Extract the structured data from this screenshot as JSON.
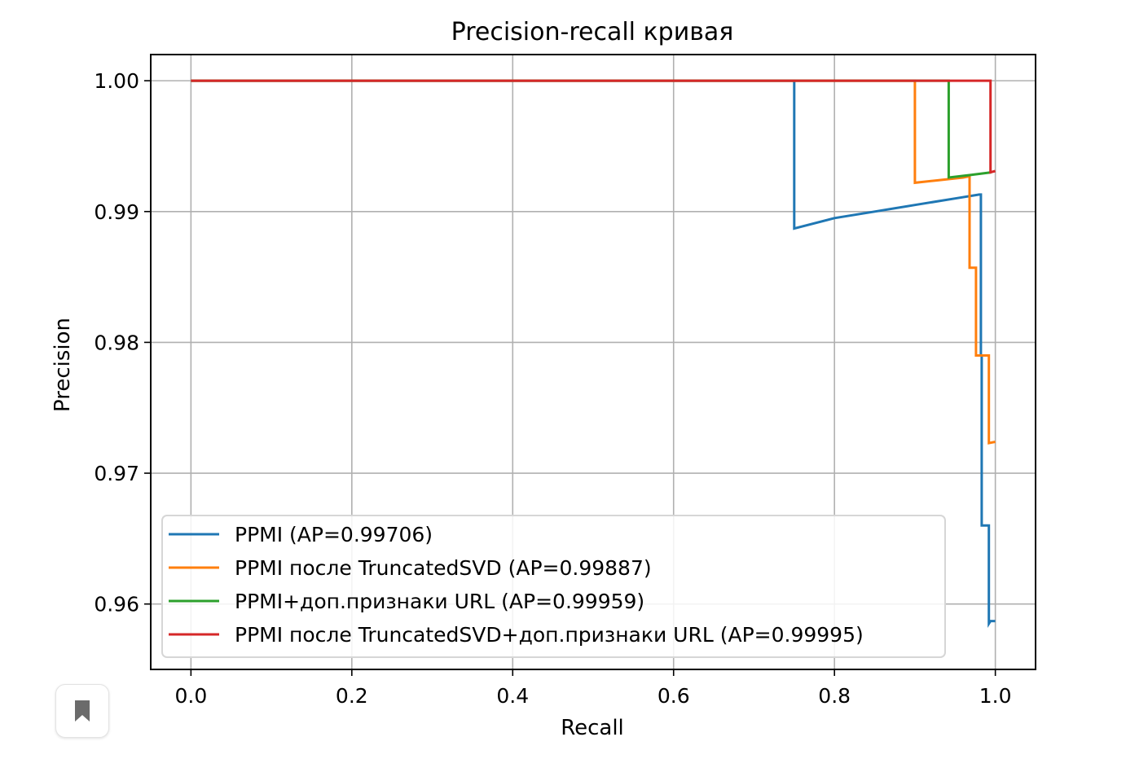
{
  "chart_data": {
    "type": "line",
    "title": "Precision-recall кривая",
    "xlabel": "Recall",
    "ylabel": "Precision",
    "xlim": [
      -0.05,
      1.05
    ],
    "ylim": [
      0.955,
      1.002
    ],
    "xticks": [
      0.0,
      0.2,
      0.4,
      0.6,
      0.8,
      1.0
    ],
    "xtick_labels": [
      "0.0",
      "0.2",
      "0.4",
      "0.6",
      "0.8",
      "1.0"
    ],
    "yticks": [
      0.96,
      0.97,
      0.98,
      0.99,
      1.0
    ],
    "ytick_labels": [
      "0.96",
      "0.97",
      "0.98",
      "0.99",
      "1.00"
    ],
    "grid": true,
    "legend_position": "lower-left",
    "series": [
      {
        "name": "PPMI (AP=0.99706)",
        "color": "#1f77b4",
        "points": [
          [
            0.0,
            1.0
          ],
          [
            0.75,
            1.0
          ],
          [
            0.75,
            0.9887
          ],
          [
            0.8,
            0.9895
          ],
          [
            0.85,
            0.99
          ],
          [
            0.9,
            0.9905
          ],
          [
            0.95,
            0.991
          ],
          [
            0.98,
            0.9913
          ],
          [
            0.982,
            0.9913
          ],
          [
            0.982,
            0.979
          ],
          [
            0.983,
            0.979
          ],
          [
            0.983,
            0.966
          ],
          [
            0.992,
            0.966
          ],
          [
            0.992,
            0.9585
          ],
          [
            0.994,
            0.9587
          ],
          [
            1.0,
            0.9587
          ]
        ]
      },
      {
        "name": "PPMI после TruncatedSVD (AP=0.99887)",
        "color": "#ff7f0e",
        "points": [
          [
            0.0,
            1.0
          ],
          [
            0.9,
            1.0
          ],
          [
            0.9,
            0.9922
          ],
          [
            0.93,
            0.9924
          ],
          [
            0.96,
            0.9926
          ],
          [
            0.968,
            0.9927
          ],
          [
            0.968,
            0.9857
          ],
          [
            0.976,
            0.9857
          ],
          [
            0.976,
            0.979
          ],
          [
            0.992,
            0.979
          ],
          [
            0.992,
            0.9723
          ],
          [
            1.0,
            0.9724
          ]
        ]
      },
      {
        "name": "PPMI+доп.признаки URL (AP=0.99959)",
        "color": "#2ca02c",
        "points": [
          [
            0.0,
            1.0
          ],
          [
            0.942,
            1.0
          ],
          [
            0.942,
            0.9926
          ],
          [
            0.97,
            0.9928
          ],
          [
            0.995,
            0.993
          ]
        ]
      },
      {
        "name": "PPMI после TruncatedSVD+доп.признаки URL (AP=0.99995)",
        "color": "#d62728",
        "points": [
          [
            0.0,
            1.0
          ],
          [
            0.994,
            1.0
          ],
          [
            0.994,
            0.993
          ],
          [
            1.0,
            0.9931
          ]
        ]
      }
    ]
  },
  "ui": {
    "bookmark_icon": "bookmark-icon"
  }
}
